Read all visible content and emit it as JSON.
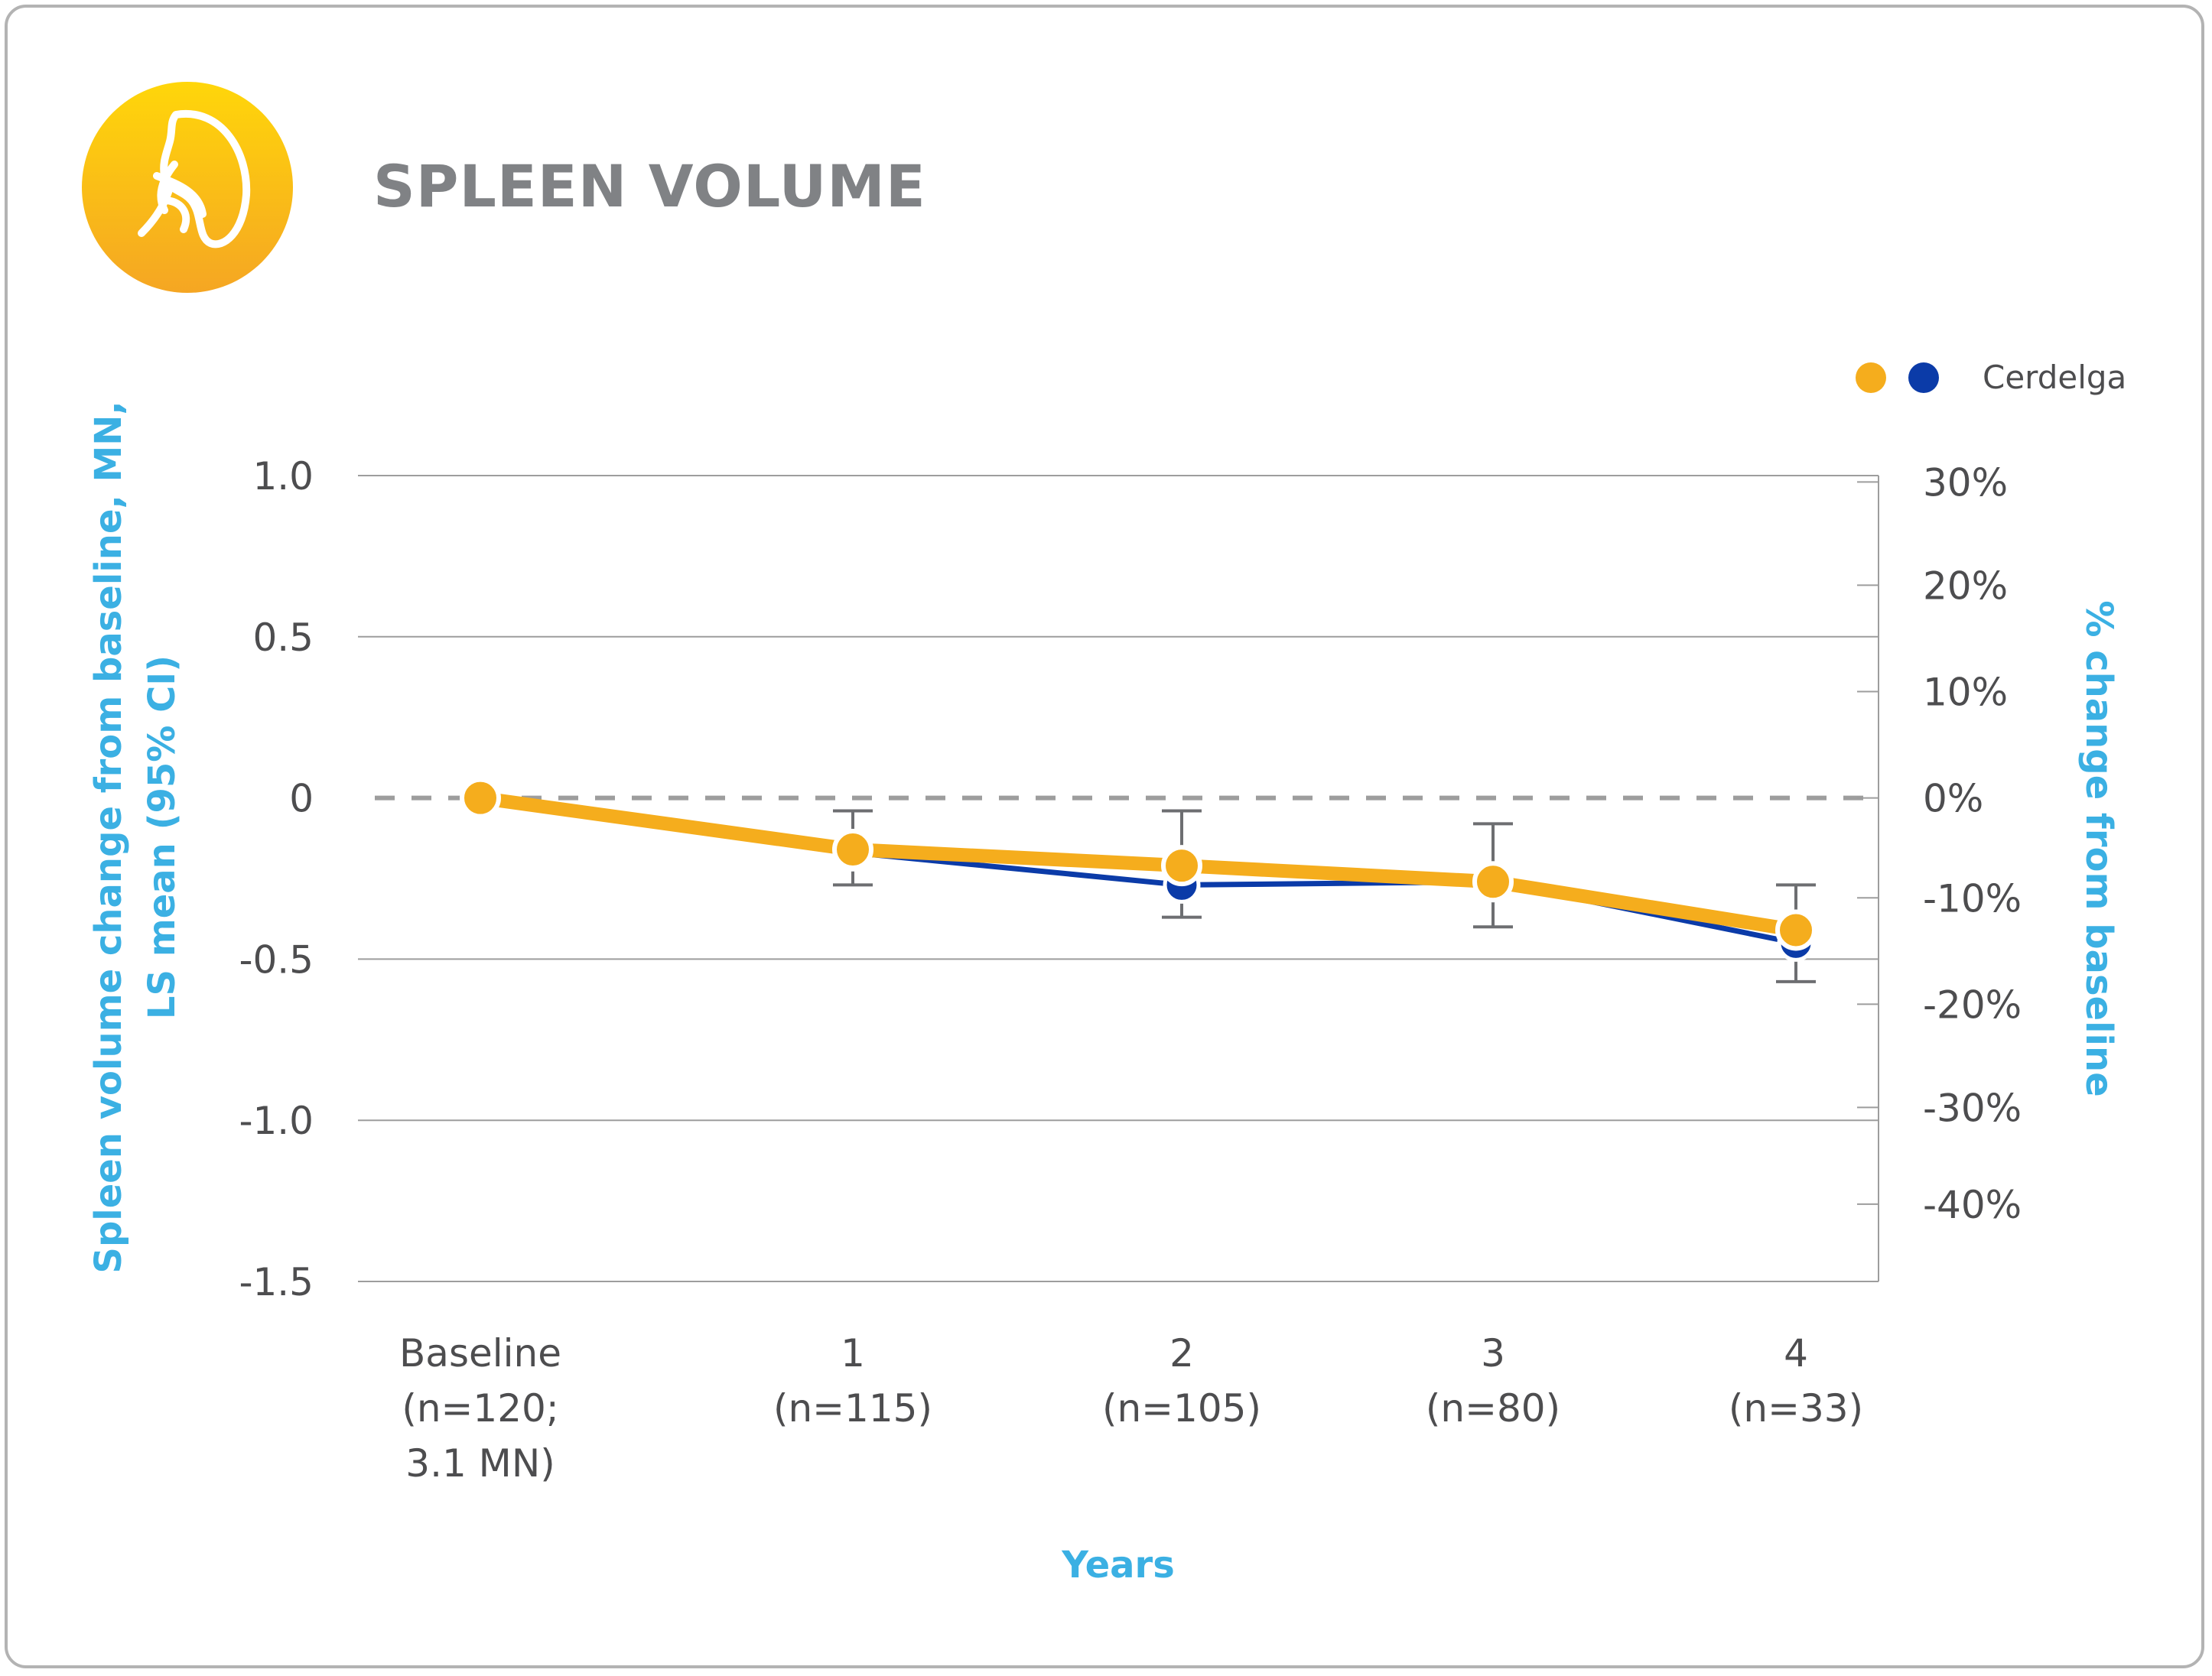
{
  "colors": {
    "series_orange": "#f5ad1d",
    "series_blue": "#0b3ba8",
    "axis_title": "#3bb0e3",
    "grid": "#9d9d9d",
    "error_bar": "#6d6e71",
    "title": "#808285"
  },
  "icon": "spleen-icon",
  "chart_data": {
    "type": "line",
    "title": "SPLEEN VOLUME",
    "xlabel": "Years",
    "ylabel_left": "Spleen volume change from baseline, MN, LS mean (95% CI)",
    "ylabel_right": "% change from baseline",
    "ylim_left": [
      -1.5,
      1.0
    ],
    "left_ticks": [
      1.0,
      0.5,
      0,
      -0.5,
      -1.0,
      -1.5
    ],
    "left_tick_labels": [
      "1.0",
      "0.5",
      "0",
      "-0.5",
      "-1.0",
      "-1.5"
    ],
    "right_ticks": [
      {
        "label": "30%",
        "at": 0.98
      },
      {
        "label": "20%",
        "at": 0.66
      },
      {
        "label": "10%",
        "at": 0.33
      },
      {
        "label": "0%",
        "at": 0
      },
      {
        "label": "-10%",
        "at": -0.31
      },
      {
        "label": "-20%",
        "at": -0.64
      },
      {
        "label": "-30%",
        "at": -0.96
      },
      {
        "label": "-40%",
        "at": -1.26
      }
    ],
    "categories": [
      [
        "Baseline",
        "(n=120;",
        "3.1 MN)"
      ],
      [
        "1",
        "(n=115)"
      ],
      [
        "2",
        "(n=105)"
      ],
      [
        "3",
        "(n=80)"
      ],
      [
        "4",
        "(n=33)"
      ]
    ],
    "x": [
      0,
      1,
      2,
      3,
      4
    ],
    "series": [
      {
        "legend_marker": "orange",
        "values": [
          0,
          -0.16,
          -0.21,
          -0.26,
          -0.41
        ],
        "ci_low": [
          null,
          -0.27,
          -0.37,
          -0.4,
          -0.57
        ],
        "ci_high": [
          null,
          -0.04,
          -0.04,
          -0.08,
          -0.27
        ]
      },
      {
        "legend_marker": "blue",
        "values": [
          0,
          -0.17,
          -0.27,
          -0.26,
          -0.45
        ]
      }
    ],
    "baseline_reference": 0,
    "legend": {
      "label": "Cerdelga",
      "position": "top-right"
    },
    "grid": true
  }
}
